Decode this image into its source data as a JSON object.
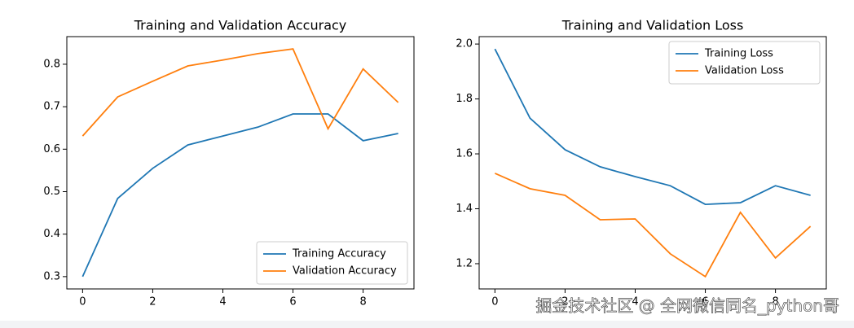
{
  "chart_data": [
    {
      "type": "line",
      "title": "Training and Validation Accuracy",
      "x": [
        0,
        1,
        2,
        3,
        4,
        5,
        6,
        7,
        8,
        9
      ],
      "series": [
        {
          "name": "Training Accuracy",
          "color": "#1f77b4",
          "values": [
            0.3,
            0.484,
            0.555,
            0.61,
            0.631,
            0.652,
            0.683,
            0.683,
            0.62,
            0.637
          ]
        },
        {
          "name": "Validation Accuracy",
          "color": "#ff7f0e",
          "values": [
            0.631,
            0.723,
            0.76,
            0.796,
            0.81,
            0.825,
            0.836,
            0.648,
            0.789,
            0.71
          ]
        }
      ],
      "xlim": [
        -0.45,
        9.45
      ],
      "xticks": [
        0,
        2,
        4,
        6,
        8
      ],
      "ylim": [
        0.271,
        0.865
      ],
      "yticks": [
        0.3,
        0.4,
        0.5,
        0.6,
        0.7,
        0.8
      ],
      "legend": "lower right"
    },
    {
      "type": "line",
      "title": "Training and Validation Loss",
      "x": [
        0,
        1,
        2,
        3,
        4,
        5,
        6,
        7,
        8,
        9
      ],
      "series": [
        {
          "name": "Training Loss",
          "color": "#1f77b4",
          "values": [
            1.982,
            1.73,
            1.615,
            1.553,
            1.517,
            1.484,
            1.416,
            1.422,
            1.484,
            1.449
          ]
        },
        {
          "name": "Validation Loss",
          "color": "#ff7f0e",
          "values": [
            1.529,
            1.473,
            1.449,
            1.36,
            1.363,
            1.236,
            1.153,
            1.387,
            1.221,
            1.336
          ]
        }
      ],
      "xlim": [
        -0.45,
        9.45
      ],
      "xticks": [
        0,
        2,
        4,
        6,
        8
      ],
      "ylim": [
        1.108,
        2.027
      ],
      "yticks": [
        1.2,
        1.4,
        1.6,
        1.8,
        {
          "value": 2,
          "label": "2.0"
        }
      ],
      "legend": "upper right"
    }
  ],
  "watermark": "掘金技术社区 @ 全网微信同名_python哥"
}
